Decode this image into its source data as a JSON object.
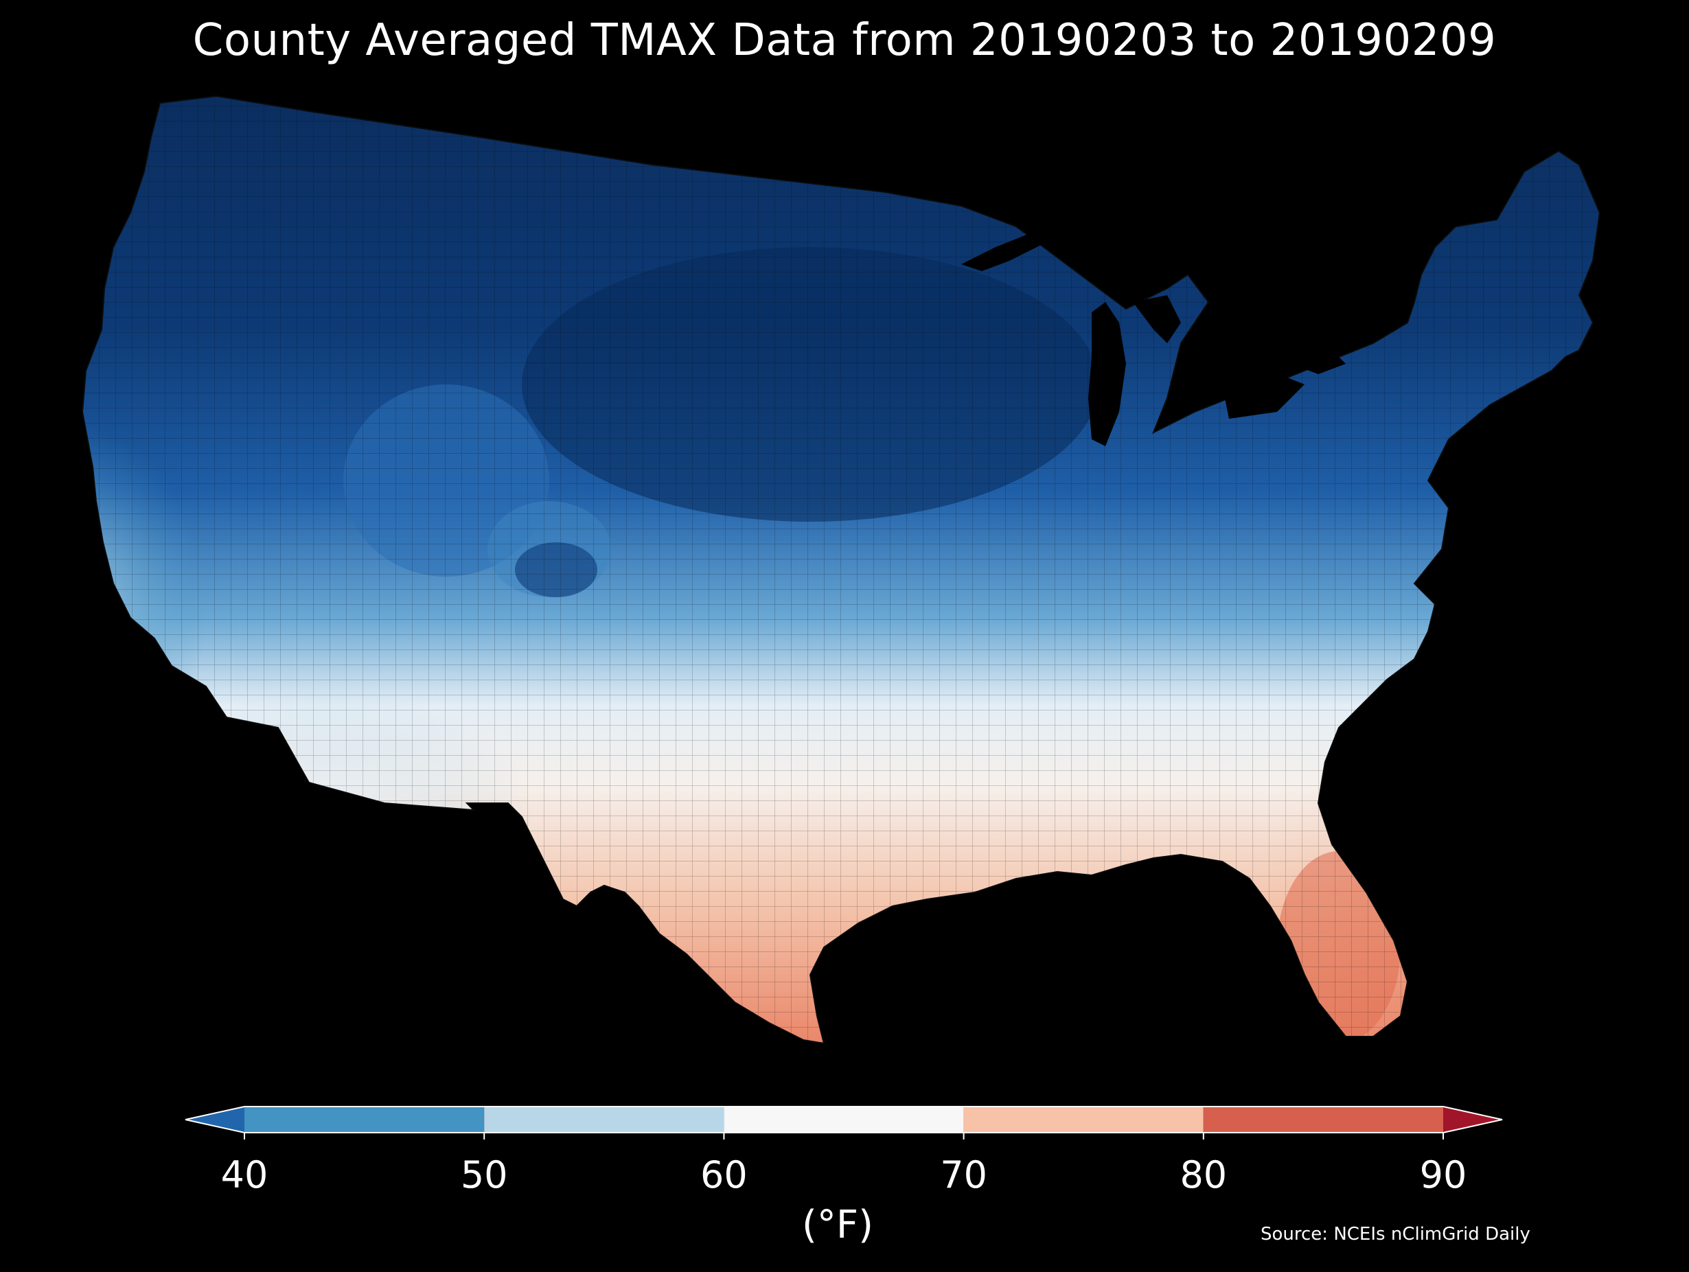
{
  "title": "County Averaged TMAX Data from 20190203 to 20190209",
  "colorbar": {
    "ticks": [
      "40",
      "50",
      "60",
      "70",
      "80",
      "90"
    ],
    "min": 40,
    "max": 90,
    "extend": "both",
    "bins": [
      {
        "from": 40,
        "to": 50,
        "color": "#4393c3"
      },
      {
        "from": 50,
        "to": 60,
        "color": "#b7d7e8"
      },
      {
        "from": 60,
        "to": 70,
        "color": "#f7f7f7"
      },
      {
        "from": 70,
        "to": 80,
        "color": "#f7c2a7"
      },
      {
        "from": 80,
        "to": 90,
        "color": "#d6604d"
      }
    ],
    "under_color": "#2166ac",
    "over_color": "#a1152a",
    "units": "(°F)"
  },
  "source": "Source: NCEIs nClimGrid Daily",
  "map": {
    "region": "Contiguous United States, county level",
    "colormap": "RdBu_r",
    "background": "#000000"
  }
}
